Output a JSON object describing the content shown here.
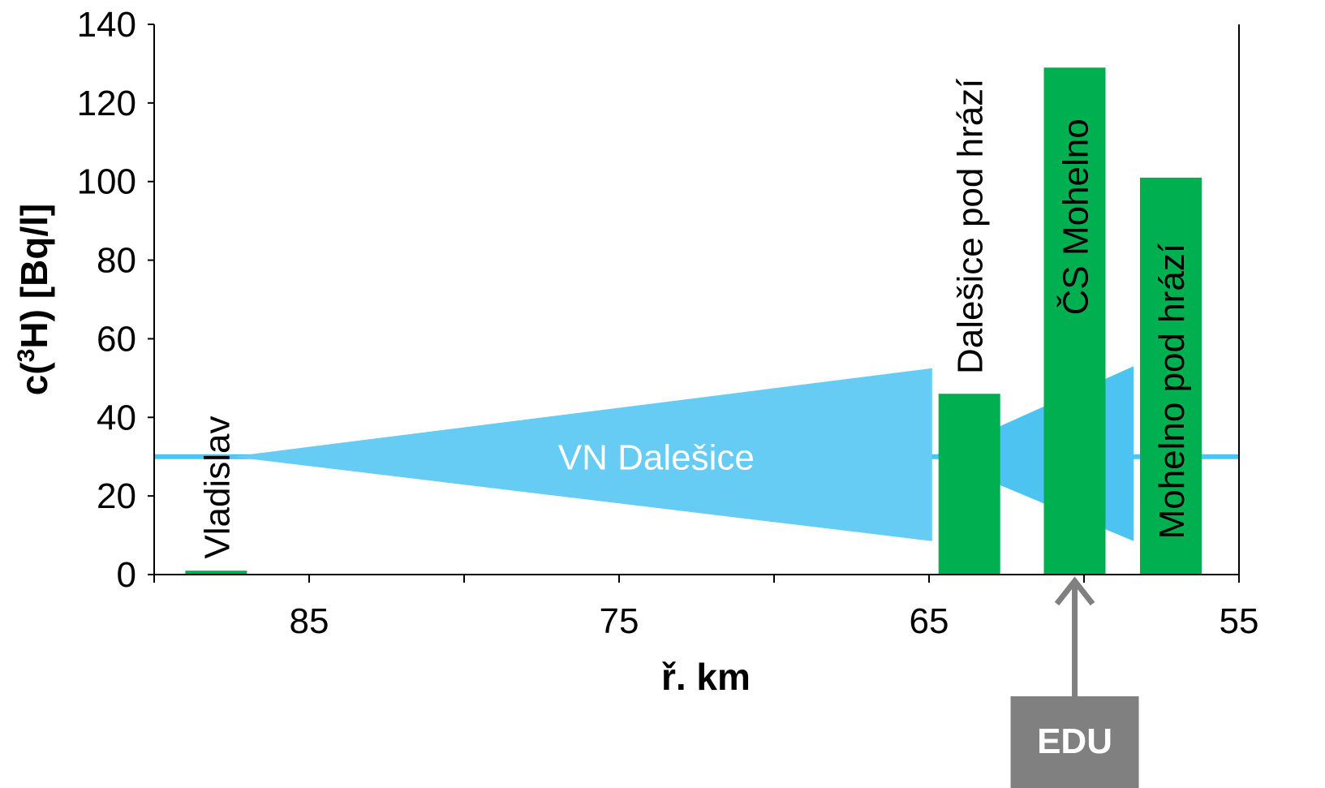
{
  "chart_data": {
    "type": "bar",
    "xlabel": "ř. km",
    "ylabel_prefix": "c(",
    "ylabel_sup": "3",
    "ylabel_suffix": "H) [Bq/l]",
    "xlim": [
      90,
      55
    ],
    "ylim": [
      0,
      140
    ],
    "xticks": [
      85,
      75,
      65,
      55
    ],
    "yticks": [
      0,
      20,
      40,
      60,
      80,
      100,
      120,
      140
    ],
    "bars": [
      {
        "label": "Vladislav",
        "x": 88,
        "value": 1
      },
      {
        "label": "Dalešice pod hrází",
        "x": 63.7,
        "value": 46
      },
      {
        "label": "ČS Mohelno",
        "x": 60.3,
        "value": 129
      },
      {
        "label": "Mohelno pod hrází",
        "x": 57.2,
        "value": 101
      }
    ],
    "reservoir_label": "VN Dalešice",
    "marker_label": "EDU",
    "marker_x": 60.3,
    "colors": {
      "bar": "#00b050",
      "water": "#66ccf3",
      "water_dark": "#4cc3f0",
      "marker": "#808080",
      "axis": "#000000"
    }
  }
}
